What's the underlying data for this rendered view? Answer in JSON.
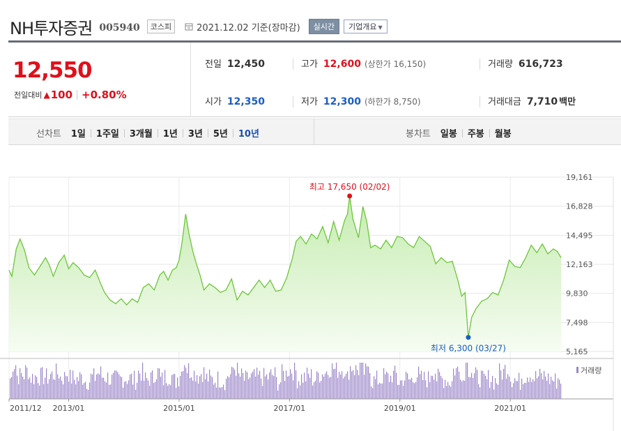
{
  "header": {
    "stock_name": "NH투자증권",
    "stock_code": "005940",
    "market": "코스피",
    "date": "2021.12.02 기준(장마감)",
    "realtime_label": "실시간",
    "company_label": "기업개요"
  },
  "summary": {
    "price": "12,550",
    "change_label": "전일대비",
    "change_amount": "100",
    "change_pct": "+0.80%",
    "prev_close": {
      "label": "전일",
      "value": "12,450"
    },
    "open": {
      "label": "시가",
      "value": "12,350"
    },
    "high": {
      "label": "고가",
      "value": "12,600",
      "sub": "(상한가 16,150)"
    },
    "low": {
      "label": "저가",
      "value": "12,300",
      "sub": "(하한가 8,750)"
    },
    "volume": {
      "label": "거래량",
      "value": "616,723"
    },
    "amount": {
      "label": "거래대금",
      "value": "7,710",
      "unit": "백만"
    }
  },
  "periodbar": {
    "line_label": "선차트",
    "line_items": [
      "1일",
      "1주일",
      "3개월",
      "1년",
      "3년",
      "5년",
      "10년"
    ],
    "line_active": "10년",
    "candle_label": "봉차트",
    "candle_items": [
      "일봉",
      "주봉",
      "월봉"
    ]
  },
  "colors": {
    "red": "#e0101a",
    "blue": "#1a5ec2",
    "line": "#6cc63a",
    "fill_top": "#c5ecb0",
    "volume": "#9b86c9"
  },
  "chart_data": {
    "type": "area",
    "y_ticks": [
      "19,161",
      "16,828",
      "14,495",
      "12,163",
      "9,830",
      "7,498",
      "5,165"
    ],
    "ylim": [
      5165,
      19161
    ],
    "x_ticks": [
      {
        "label": "2011/12",
        "x": 2011.92
      },
      {
        "label": "2013/01",
        "x": 2013.0
      },
      {
        "label": "2015/01",
        "x": 2015.0
      },
      {
        "label": "2017/01",
        "x": 2017.0
      },
      {
        "label": "2019/01",
        "x": 2019.0
      },
      {
        "label": "2021/01",
        "x": 2021.0
      }
    ],
    "xlim": [
      2011.92,
      2021.92
    ],
    "max_label": "최고 17,650 (02/02)",
    "min_label": "최저 6,300 (03/27)",
    "max_point": {
      "x": 2018.09,
      "y": 17650
    },
    "min_point": {
      "x": 2020.24,
      "y": 6300
    },
    "volume_label": "거래량",
    "series": [
      {
        "x": [
          2011.92,
          2011.97,
          2012.05,
          2012.12,
          2012.2,
          2012.28,
          2012.38,
          2012.48,
          2012.58,
          2012.65,
          2012.72,
          2012.82,
          2012.92,
          2013.0,
          2013.08,
          2013.18,
          2013.28,
          2013.38,
          2013.48,
          2013.58,
          2013.65,
          2013.75,
          2013.85,
          2013.95,
          2014.05,
          2014.15,
          2014.25,
          2014.35,
          2014.45,
          2014.55,
          2014.65,
          2014.72,
          2014.8,
          2014.88,
          2014.95,
          2015.0,
          2015.05,
          2015.12,
          2015.18,
          2015.25,
          2015.32,
          2015.38,
          2015.45,
          2015.55,
          2015.65,
          2015.75,
          2015.85,
          2015.95,
          2016.05,
          2016.15,
          2016.25,
          2016.35,
          2016.45,
          2016.55,
          2016.65,
          2016.75,
          2016.85,
          2016.95,
          2017.05,
          2017.12,
          2017.2,
          2017.3,
          2017.4,
          2017.5,
          2017.6,
          2017.7,
          2017.8,
          2017.9,
          2018.0,
          2018.05,
          2018.09,
          2018.15,
          2018.25,
          2018.33,
          2018.4,
          2018.47,
          2018.55,
          2018.65,
          2018.75,
          2018.85,
          2018.95,
          2019.05,
          2019.15,
          2019.25,
          2019.35,
          2019.45,
          2019.55,
          2019.65,
          2019.75,
          2019.85,
          2019.95,
          2020.05,
          2020.12,
          2020.18,
          2020.24,
          2020.3,
          2020.38,
          2020.48,
          2020.58,
          2020.68,
          2020.78,
          2020.88,
          2020.98,
          2021.08,
          2021.18,
          2021.28,
          2021.38,
          2021.48,
          2021.58,
          2021.68,
          2021.78,
          2021.85,
          2021.92
        ],
        "y": [
          11700,
          11200,
          13400,
          14200,
          13300,
          11900,
          11300,
          12000,
          12700,
          12100,
          11200,
          12300,
          12900,
          11800,
          12300,
          11900,
          11300,
          11100,
          11700,
          10600,
          9900,
          9300,
          9000,
          9400,
          8900,
          9400,
          9100,
          10300,
          10600,
          10100,
          11300,
          11600,
          10900,
          11700,
          11900,
          12500,
          13800,
          16200,
          14600,
          13200,
          12100,
          11300,
          10100,
          10600,
          10300,
          9900,
          10100,
          11000,
          9300,
          10000,
          9700,
          10300,
          10900,
          10300,
          10900,
          10000,
          10100,
          11100,
          12600,
          14000,
          14400,
          13800,
          14600,
          14200,
          15200,
          13900,
          15600,
          14100,
          15700,
          16200,
          17650,
          15800,
          14300,
          16800,
          15600,
          13500,
          13700,
          13400,
          14100,
          13500,
          14400,
          14300,
          13800,
          13500,
          14400,
          14000,
          13600,
          12200,
          12700,
          12300,
          12400,
          10900,
          9600,
          9900,
          6300,
          7900,
          8600,
          9200,
          9400,
          9900,
          9700,
          10900,
          12500,
          12000,
          11900,
          12700,
          13700,
          13100,
          13800,
          13000,
          13400,
          13200,
          12700
        ]
      }
    ]
  }
}
